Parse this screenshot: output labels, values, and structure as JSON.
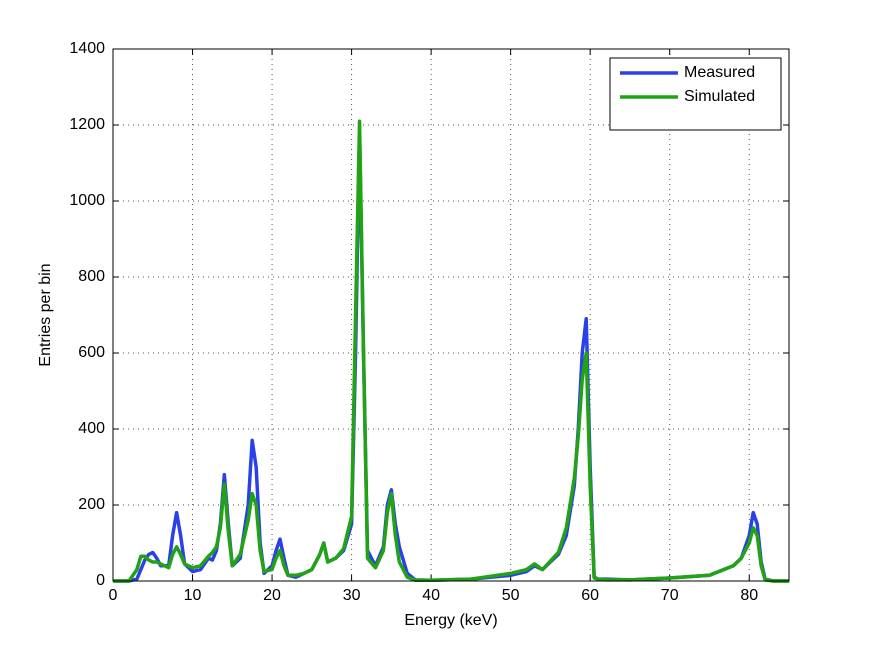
{
  "chart_data": {
    "type": "line",
    "xlabel": "Energy (keV)",
    "ylabel": "Entries per bin",
    "x": [
      0,
      2,
      3,
      3.5,
      4,
      4.5,
      5,
      5.5,
      6,
      7,
      7.5,
      8,
      8.5,
      9,
      10,
      11,
      12,
      12.5,
      13,
      13.5,
      14,
      14.5,
      15,
      16,
      17,
      17.5,
      18,
      18.5,
      19,
      20,
      20.5,
      21,
      21.5,
      22,
      23,
      24,
      25,
      26,
      26.5,
      27,
      28,
      29,
      30,
      30.5,
      31,
      31.5,
      32,
      33,
      34,
      34.5,
      35,
      35.5,
      36,
      37,
      38,
      40,
      45,
      50,
      52,
      53,
      54,
      56,
      57,
      58,
      58.5,
      59,
      59.5,
      60,
      60.5,
      61,
      62,
      65,
      70,
      75,
      78,
      79,
      80,
      80.5,
      81,
      81.5,
      82,
      83,
      85
    ],
    "series": [
      {
        "name": "Measured",
        "color": "#2a41e8",
        "values": [
          0,
          0,
          5,
          30,
          55,
          70,
          75,
          60,
          40,
          40,
          120,
          180,
          120,
          45,
          25,
          30,
          60,
          55,
          80,
          150,
          280,
          150,
          40,
          60,
          200,
          370,
          300,
          100,
          20,
          40,
          80,
          110,
          60,
          15,
          10,
          20,
          30,
          70,
          100,
          50,
          60,
          80,
          150,
          600,
          1180,
          600,
          80,
          40,
          90,
          200,
          240,
          150,
          90,
          20,
          3,
          2,
          5,
          15,
          25,
          40,
          30,
          70,
          120,
          250,
          400,
          600,
          690,
          300,
          10,
          5,
          5,
          3,
          8,
          15,
          40,
          60,
          120,
          180,
          150,
          50,
          5,
          0,
          0
        ]
      },
      {
        "name": "Simulated",
        "color": "#22a313",
        "values": [
          0,
          0,
          30,
          65,
          65,
          55,
          50,
          50,
          45,
          35,
          70,
          90,
          70,
          45,
          35,
          40,
          65,
          75,
          90,
          140,
          255,
          130,
          40,
          70,
          160,
          230,
          200,
          80,
          25,
          30,
          60,
          80,
          40,
          15,
          15,
          20,
          30,
          70,
          100,
          50,
          60,
          85,
          170,
          700,
          1210,
          600,
          60,
          35,
          80,
          180,
          230,
          120,
          50,
          10,
          2,
          2,
          5,
          20,
          30,
          45,
          30,
          75,
          140,
          270,
          380,
          530,
          600,
          250,
          8,
          5,
          3,
          3,
          8,
          15,
          40,
          60,
          100,
          140,
          120,
          40,
          3,
          0,
          0
        ]
      }
    ],
    "xlim": [
      0,
      85
    ],
    "xticks": [
      0,
      10,
      20,
      30,
      40,
      50,
      60,
      70,
      80
    ],
    "ylim": [
      0,
      1400
    ],
    "yticks": [
      0,
      200,
      400,
      600,
      800,
      1000,
      1200,
      1400
    ],
    "grid": true,
    "legend": "upper right"
  }
}
